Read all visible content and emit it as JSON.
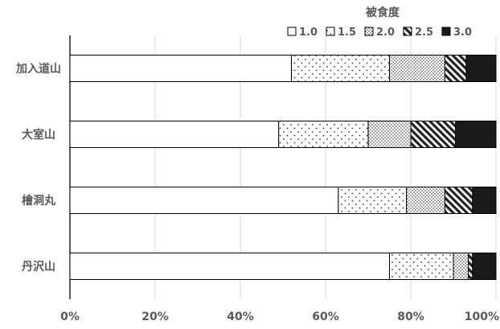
{
  "chart_data": {
    "type": "bar",
    "orientation": "horizontal",
    "stacked": "percent",
    "legend_title": "被食度",
    "legend_position": "top-right",
    "categories": [
      "加入道山",
      "大室山",
      "檜洞丸",
      "丹沢山"
    ],
    "series": [
      {
        "name": "1.0",
        "pattern": "none",
        "values": [
          52,
          49,
          63,
          75
        ]
      },
      {
        "name": "1.5",
        "pattern": "sparse-dots",
        "values": [
          23,
          21,
          16,
          15
        ]
      },
      {
        "name": "2.0",
        "pattern": "dense-dots",
        "values": [
          13,
          10,
          9,
          3.5
        ]
      },
      {
        "name": "2.5",
        "pattern": "diagonal-stripes",
        "values": [
          5,
          10.5,
          6.5,
          1
        ]
      },
      {
        "name": "3.0",
        "pattern": "solid",
        "values": [
          7,
          9.5,
          5.5,
          5.5
        ]
      }
    ],
    "xlim": [
      0,
      100
    ],
    "xticks": [
      "0%",
      "20%",
      "40%",
      "60%",
      "80%",
      "100%"
    ],
    "grid": true,
    "colors": {
      "fill_light": "#ffffff",
      "fill_dark": "#1a1a1a",
      "grid": "#d9d9d9",
      "text": "#595959"
    }
  }
}
